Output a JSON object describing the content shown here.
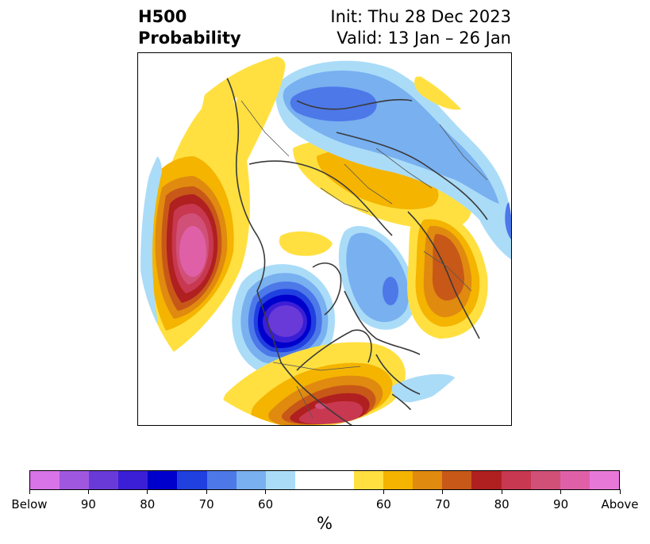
{
  "title": {
    "left_line1": "H500",
    "left_line2": "Probability",
    "right_line1": "Init: Thu 28 Dec 2023",
    "right_line2": "Valid: 13 Jan – 26 Jan"
  },
  "map": {
    "projection": "north-polar-stereographic",
    "coastline_color": "#3a3a3a"
  },
  "colorbar": {
    "unit": "%",
    "colors": [
      "#d873e8",
      "#a057e0",
      "#6a3ad8",
      "#3b1fd6",
      "#0000cc",
      "#2040e0",
      "#4d78e8",
      "#78b0f0",
      "#aadcf8",
      "#ffffff",
      "#ffffff",
      "#ffe040",
      "#f4b400",
      "#e08a10",
      "#c85818",
      "#b02020",
      "#c83850",
      "#d05078",
      "#e060a8",
      "#e878d8"
    ],
    "ticks": [
      {
        "label": "Below"
      },
      {
        "label": "90"
      },
      {
        "label": "80"
      },
      {
        "label": "70"
      },
      {
        "label": "60"
      },
      {
        "label": "60"
      },
      {
        "label": "70"
      },
      {
        "label": "80"
      },
      {
        "label": "90"
      },
      {
        "label": "Above"
      }
    ]
  }
}
